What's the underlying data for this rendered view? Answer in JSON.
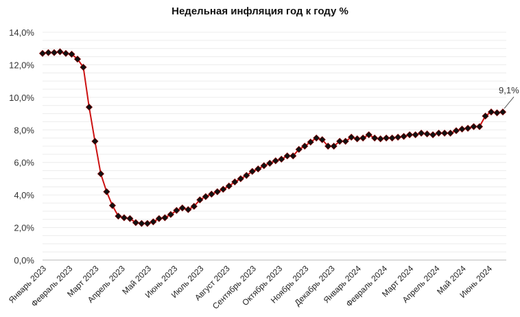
{
  "chart_data": {
    "type": "line",
    "title": "Недельная инфляция год к году %",
    "xlabel": "",
    "ylabel": "",
    "ylim": [
      0,
      14
    ],
    "yticks": [
      "0,0%",
      "2,0%",
      "4,0%",
      "6,0%",
      "8,0%",
      "10,0%",
      "12,0%",
      "14,0%"
    ],
    "grid": true,
    "legend": null,
    "x_tick_labels": [
      "Январь 2023",
      "Февраль 2023",
      "Март 2023",
      "Апрель 2023",
      "Май 2023",
      "Июнь 2023",
      "Июль 2023",
      "Август 2023",
      "Сентябрь 2023",
      "Октябрь 2023",
      "Ноябрь 2023",
      "Декабрь 2023",
      "Январь 2024",
      "Февраль 2024",
      "Март 2024",
      "Апрель 2024",
      "Май 2024",
      "Июнь 2024"
    ],
    "series": [
      {
        "name": "Недельная инфляция год к году",
        "color": "#cc1111",
        "marker_color": "#111111",
        "values": [
          12.7,
          12.75,
          12.75,
          12.8,
          12.7,
          12.65,
          12.35,
          11.85,
          9.4,
          7.3,
          5.3,
          4.2,
          3.35,
          2.7,
          2.6,
          2.55,
          2.3,
          2.25,
          2.25,
          2.35,
          2.55,
          2.6,
          2.8,
          3.05,
          3.2,
          3.1,
          3.3,
          3.7,
          3.9,
          4.05,
          4.2,
          4.35,
          4.55,
          4.8,
          5.0,
          5.2,
          5.45,
          5.6,
          5.8,
          5.95,
          6.1,
          6.2,
          6.4,
          6.4,
          6.8,
          7.0,
          7.25,
          7.5,
          7.4,
          7.0,
          7.0,
          7.3,
          7.3,
          7.55,
          7.45,
          7.5,
          7.7,
          7.5,
          7.45,
          7.5,
          7.5,
          7.55,
          7.6,
          7.7,
          7.7,
          7.8,
          7.75,
          7.7,
          7.8,
          7.8,
          7.8,
          7.95,
          8.05,
          8.1,
          8.2,
          8.2,
          8.85,
          9.1,
          9.05,
          9.1
        ]
      }
    ],
    "annotations": [
      {
        "text": "9,1%",
        "target": "last-point"
      }
    ]
  }
}
